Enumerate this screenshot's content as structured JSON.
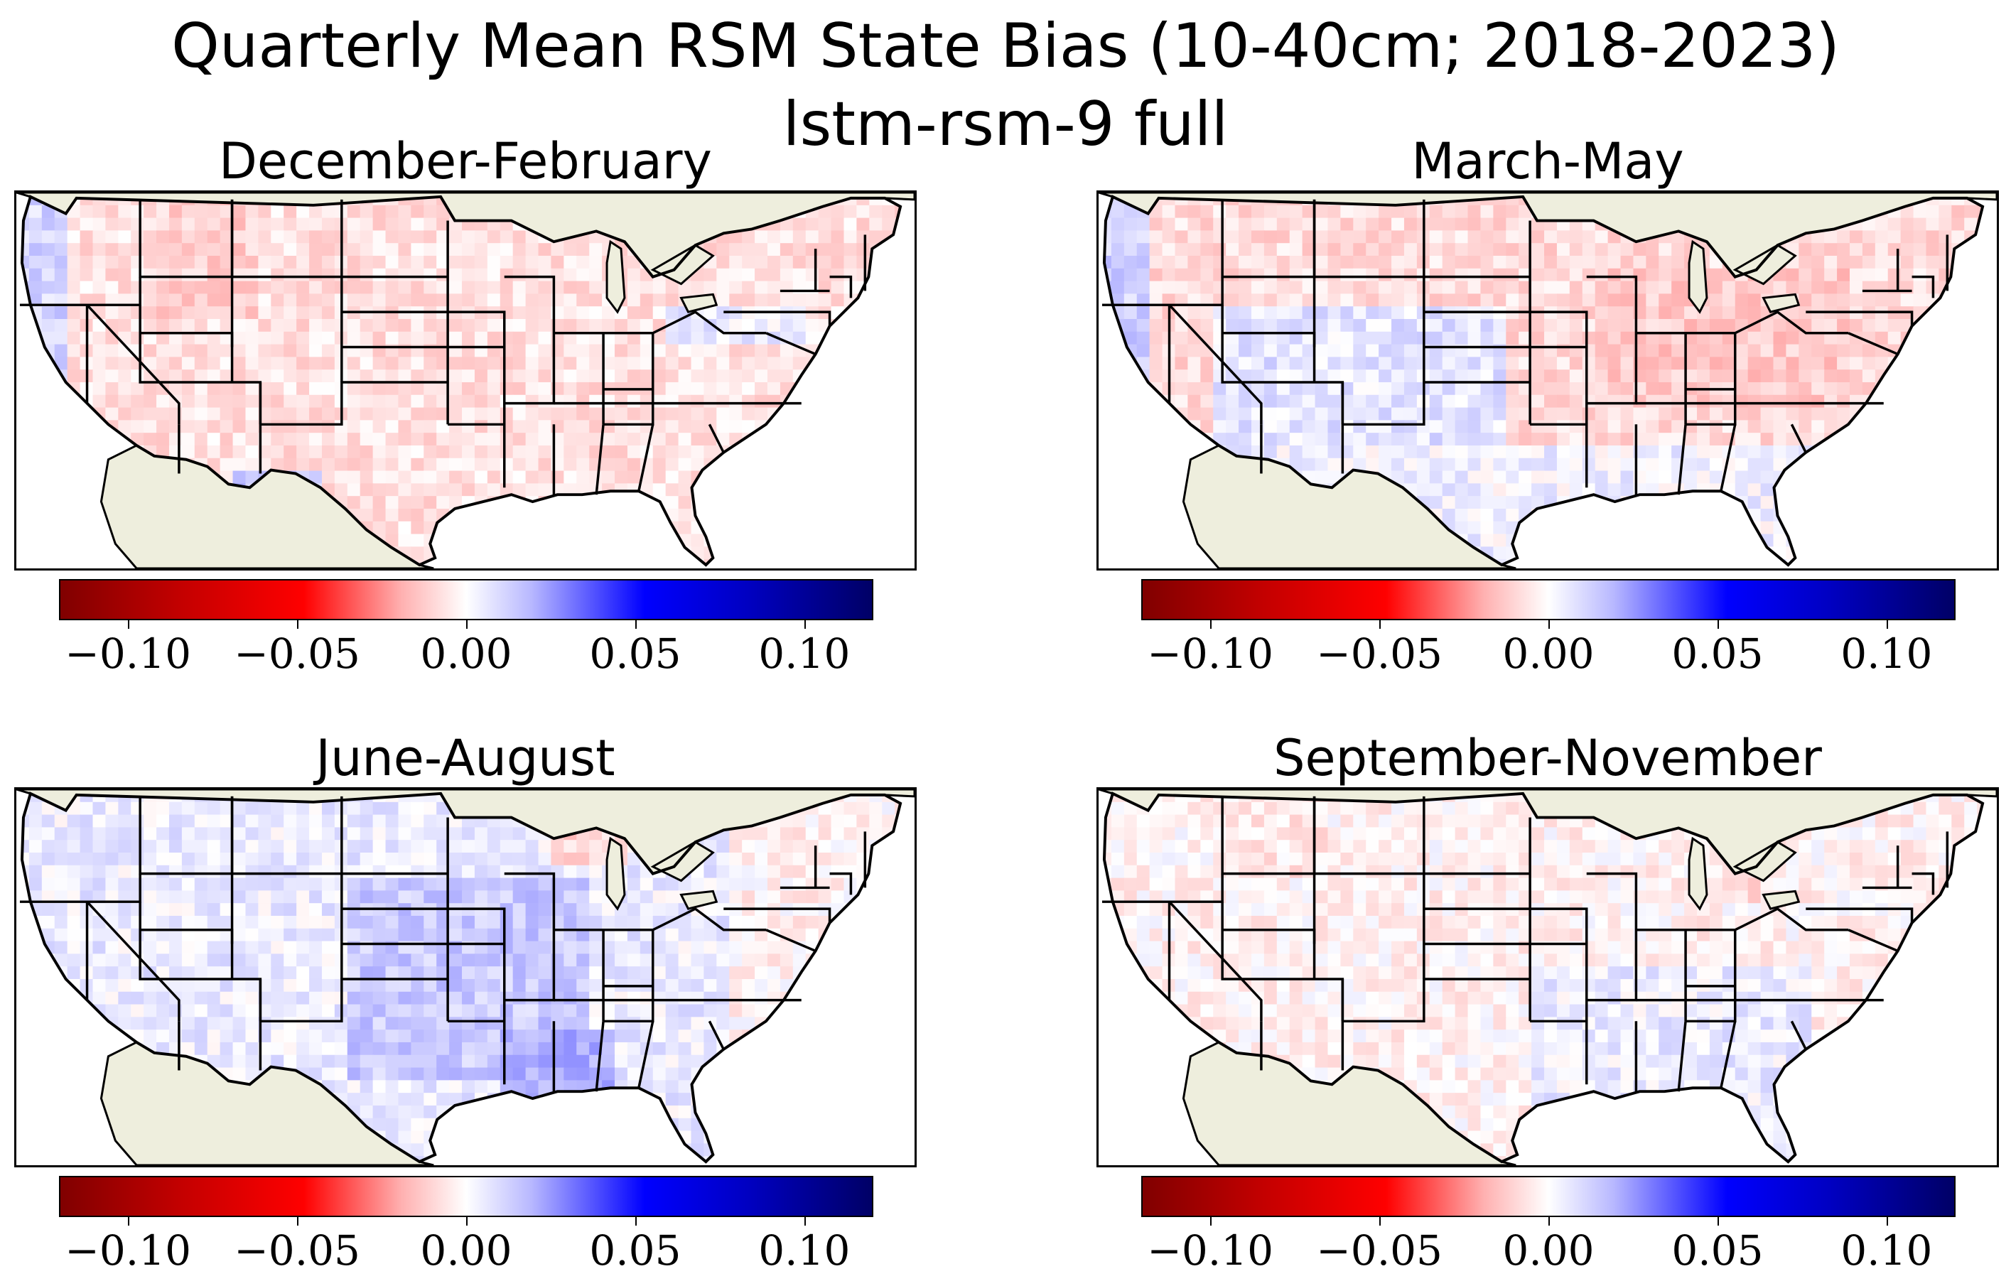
{
  "figure": {
    "title_line1": "Quarterly Mean RSM State Bias (10-40cm; 2018-2023)",
    "title_line2": "lstm-rsm-9 full"
  },
  "colorbar": {
    "colormap": "seismic_r",
    "range": [
      -0.12,
      0.12
    ],
    "ticks": [
      -0.1,
      -0.05,
      0.0,
      0.05,
      0.1
    ],
    "tick_labels": [
      "−0.10",
      "−0.05",
      "0.00",
      "0.05",
      "0.10"
    ]
  },
  "colors": {
    "land_outside_domain": "#eeeedd",
    "ocean": "#ffffff",
    "boundaries": "#000000",
    "negative_bias": "#ff0000",
    "positive_bias": "#0000ff"
  },
  "panels": [
    {
      "title": "December-February",
      "dominant_bias": "slightly negative (red) in West and Midwest"
    },
    {
      "title": "March-May",
      "dominant_bias": "negative (red) in Northwest and Midwest, slightly positive in Southwest"
    },
    {
      "title": "June-August",
      "dominant_bias": "positive (blue) in central Plains and Mississippi valley"
    },
    {
      "title": "September-November",
      "dominant_bias": "near zero, slight mixed bias"
    }
  ]
}
